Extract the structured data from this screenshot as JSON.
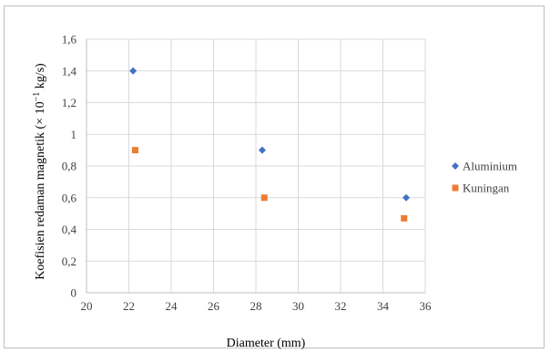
{
  "chart_data": {
    "type": "scatter",
    "title": "",
    "xlabel": "Diameter (mm)",
    "ylabel": "Koefisien redaman magnetik (× 10",
    "ylabel_exponent": "−1",
    "ylabel_unit": " kg/s)",
    "xlim": [
      20,
      36
    ],
    "ylim": [
      0,
      1.6
    ],
    "x_ticks": [
      20,
      22,
      24,
      26,
      28,
      30,
      32,
      34,
      36
    ],
    "x_tick_labels": [
      "20",
      "22",
      "24",
      "26",
      "28",
      "30",
      "32",
      "34",
      "36"
    ],
    "y_ticks": [
      0,
      0.2,
      0.4,
      0.6,
      0.8,
      1.0,
      1.2,
      1.4,
      1.6
    ],
    "y_tick_labels": [
      "0",
      "0,2",
      "0,4",
      "0,6",
      "0,8",
      "1",
      "1,2",
      "1,4",
      "1,6"
    ],
    "grid": true,
    "legend_position": "right",
    "series": [
      {
        "name": "Aluminium",
        "marker": "diamond",
        "color": "#4472c4",
        "points": [
          {
            "x": 22.2,
            "y": 1.4
          },
          {
            "x": 28.3,
            "y": 0.9
          },
          {
            "x": 35.1,
            "y": 0.6
          }
        ]
      },
      {
        "name": "Kuningan",
        "marker": "square",
        "color": "#ed7d31",
        "points": [
          {
            "x": 22.3,
            "y": 0.9
          },
          {
            "x": 28.4,
            "y": 0.6
          },
          {
            "x": 35.0,
            "y": 0.47
          }
        ]
      }
    ]
  }
}
